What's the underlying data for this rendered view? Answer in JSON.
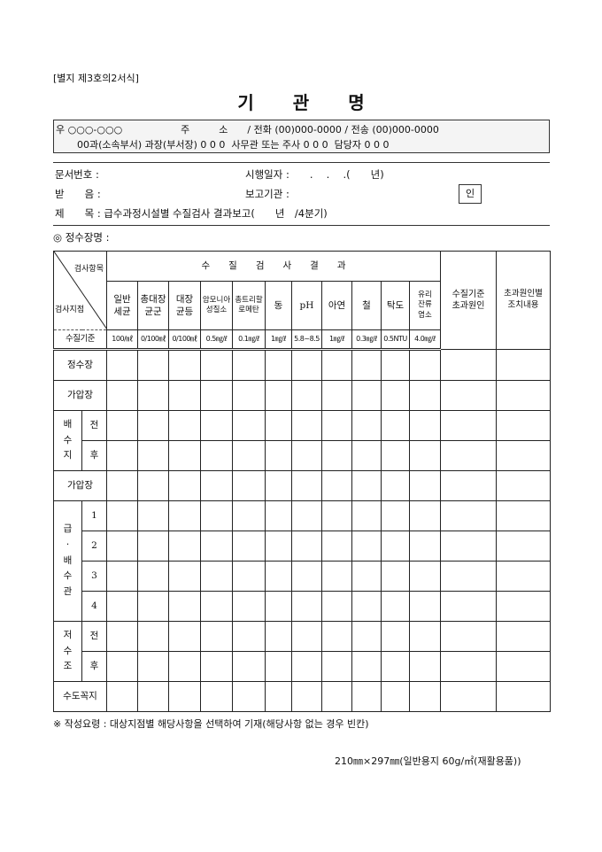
{
  "form_no": "[별지 제3호의2서식]",
  "title": [
    "기",
    "관",
    "명"
  ],
  "address": {
    "line1": "우 ○○○-○○○　　　　　　주　　　소　　/ 전화 (00)000-0000 / 전송 (00)000-0000",
    "line2": "00과(소속부서) 과장(부서장) 0 0 0  사무관 또는 주사 0 0 0  담당자 0 0 0"
  },
  "fields": {
    "doc_no": "문서번호 :",
    "date": "시행일자 :　　.　 .　 .(　　년)",
    "recipient": "받　　음 :",
    "reporter": "보고기관 :",
    "seal": "인",
    "subject": "제　　목 : 급수과정시설별 수질검사 결과보고(　　년　/4분기)",
    "plant": "◎ 정수장명 :"
  },
  "table": {
    "diag_top": "검사항목",
    "diag_bottom": "검사지점",
    "group_header": "수　　질　　검　　사　　결　　과",
    "items": [
      "일반\n세균",
      "총대장\n균군",
      "대장\n균등",
      "암모니아\n성질소",
      "총트리할\n로메탄",
      "동",
      "pH",
      "아연",
      "철",
      "탁도",
      "유리\n잔류\n염소"
    ],
    "extra_headers": [
      "수질기준\n초과원인",
      "초과원인별\n조치내용"
    ],
    "standard_label": "수질기준",
    "standards": [
      "100/㎖",
      "0/100㎖",
      "0/100㎖",
      "0.5㎎/ℓ",
      "0.1㎎/ℓ",
      "1㎎/ℓ",
      "5.8~8.5",
      "1㎎/ℓ",
      "0.3㎎/ℓ",
      "0.5NTU",
      "4.0㎎/ℓ"
    ],
    "rows": [
      {
        "label": "정수장"
      },
      {
        "label": "가압장"
      },
      {
        "group": "배\n수\n지",
        "subs": [
          "전",
          "후"
        ]
      },
      {
        "label": "가압장"
      },
      {
        "group": "급\n·\n배\n수\n관",
        "subs": [
          "1",
          "2",
          "3",
          "4"
        ]
      },
      {
        "group": "저\n수\n조",
        "subs": [
          "전",
          "후"
        ]
      },
      {
        "label": "수도꼭지"
      }
    ]
  },
  "note": "※ 작성요령 : 대상지점별 해당사항을 선택하여 기재(해당사항 없는 경우 빈칸)",
  "paper": "210㎜×297㎜(일반용지 60g/㎡(재활용품))"
}
